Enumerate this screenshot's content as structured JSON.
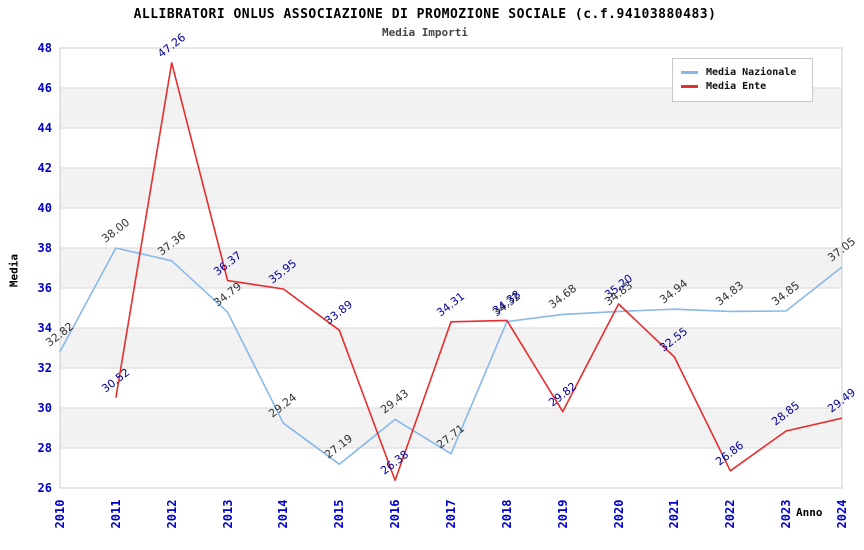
{
  "title": "ALLIBRATORI ONLUS ASSOCIAZIONE DI PROMOZIONE SOCIALE (c.f.94103880483)",
  "subtitle": "Media Importi",
  "legend": {
    "position": "top-right",
    "items": [
      {
        "label": "Media Nazionale",
        "color": "#88b9e8"
      },
      {
        "label": "Media Ente",
        "color": "#e62e2e"
      }
    ]
  },
  "chart_data": {
    "type": "line",
    "title": "Media Importi",
    "xlabel": "Anno",
    "ylabel": "Media",
    "x": [
      2010,
      2011,
      2012,
      2013,
      2014,
      2015,
      2016,
      2017,
      2018,
      2019,
      2020,
      2021,
      2022,
      2023,
      2024
    ],
    "series": [
      {
        "name": "Media Nazionale",
        "color": "#88b9e8",
        "label_color": "#333333",
        "values": [
          32.82,
          38.0,
          37.36,
          34.79,
          29.24,
          27.19,
          29.43,
          27.71,
          34.32,
          34.68,
          34.83,
          34.94,
          34.83,
          34.85,
          37.05
        ]
      },
      {
        "name": "Media Ente",
        "color": "#e62e2e",
        "label_color": "#000099",
        "values": [
          null,
          30.52,
          47.26,
          36.37,
          35.95,
          33.89,
          26.38,
          34.31,
          34.38,
          29.82,
          35.2,
          32.55,
          26.86,
          28.85,
          29.49
        ]
      }
    ],
    "ylim": [
      26,
      48
    ],
    "ytick_step": 2,
    "yticks": [
      26,
      28,
      30,
      32,
      34,
      36,
      38,
      40,
      42,
      44,
      46,
      48
    ],
    "grid": true,
    "band_color": "#f2f2f2",
    "gridline_color": "#d9d9d9",
    "plot_border_color": "#cccccc",
    "tick_color": "#0000cc",
    "legend_position": "top-right"
  }
}
